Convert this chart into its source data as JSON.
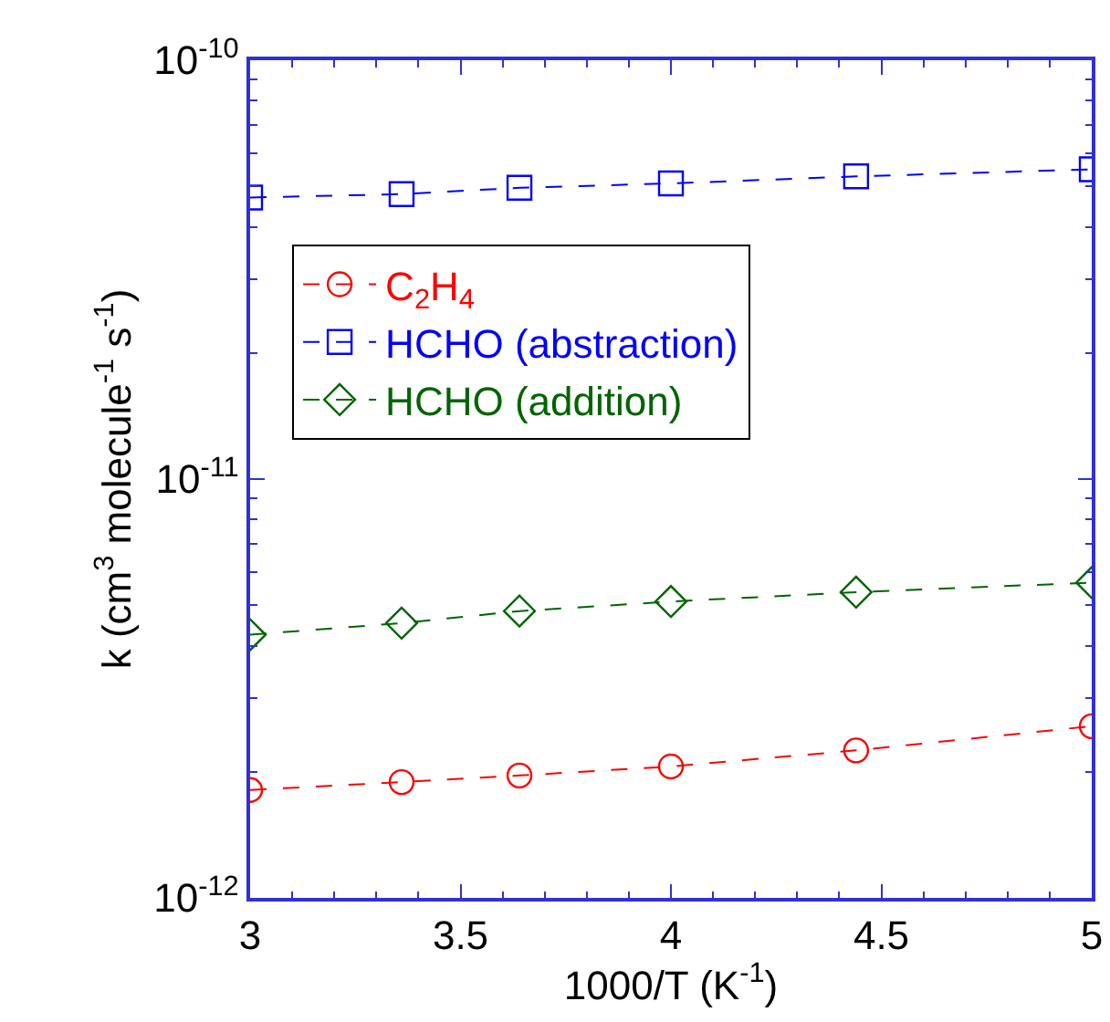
{
  "chart_data": {
    "type": "line",
    "xlabel": "1000/T (K$^{-1}$)",
    "ylabel": "k (cm$^{3}$ molecule$^{-1}$ s$^{-1}$)",
    "x": [
      3,
      3.36,
      3.64,
      4,
      4.44,
      5
    ],
    "series": [
      {
        "name": "C$_{2}$H$_{4}$",
        "color": "#ff0000",
        "marker": "circle",
        "values": [
          1.81e-12,
          1.89e-12,
          1.96e-12,
          2.06e-12,
          2.25e-12,
          2.57e-12
        ]
      },
      {
        "name": "HCHO (abstraction)",
        "color": "#0000ff",
        "marker": "square",
        "values": [
          4.7e-11,
          4.79e-11,
          4.96e-11,
          5.08e-11,
          5.28e-11,
          5.49e-11
        ]
      },
      {
        "name": "HCHO (addition)",
        "color": "#006400",
        "marker": "diamond",
        "values": [
          4.25e-12,
          4.53e-12,
          4.84e-12,
          5.1e-12,
          5.37e-12,
          5.66e-12
        ]
      }
    ],
    "log": "y",
    "xlim": [
      3,
      5
    ],
    "xticks": [
      3,
      3.5,
      4,
      4.5,
      5
    ],
    "ylim": [
      1e-12,
      1e-10
    ],
    "yticks": [
      {
        "value": 1e-12,
        "label": "10$^{-12}$"
      },
      {
        "value": 1e-11,
        "label": "10$^{-11}$"
      },
      {
        "value": 1e-10,
        "label": "10$^{-10}$"
      }
    ],
    "grid": false,
    "legend": "top left",
    "line_style": "dashed"
  }
}
